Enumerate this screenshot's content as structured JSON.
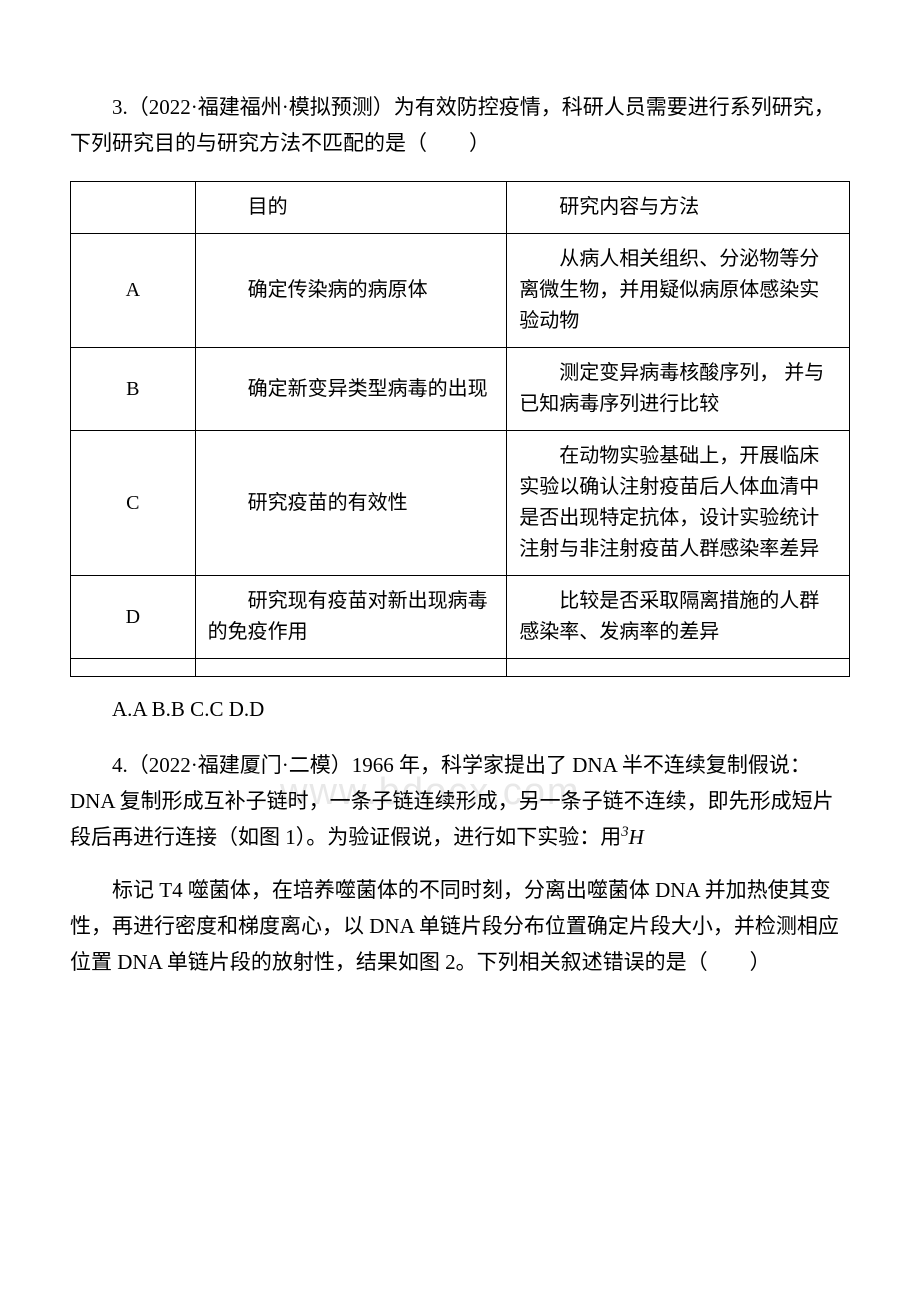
{
  "question3": {
    "prompt": "3.（2022·福建福州·模拟预测）为有效防控疫情，科研人员需要进行系列研究，下列研究目的与研究方法不匹配的是（　　）",
    "headers": {
      "label": "",
      "purpose": "目的",
      "method": "研究内容与方法"
    },
    "rows": [
      {
        "label": "A",
        "purpose": "确定传染病的病原体",
        "method": "从病人相关组织、分泌物等分离微生物，并用疑似病原体感染实验动物"
      },
      {
        "label": "B",
        "purpose": "确定新变异类型病毒的出现",
        "method": "测定变异病毒核酸序列， 并与已知病毒序列进行比较"
      },
      {
        "label": "C",
        "purpose": "研究疫苗的有效性",
        "method": "在动物实验基础上，开展临床实验以确认注射疫苗后人体血清中是否出现特定抗体，设计实验统计注射与非注射疫苗人群感染率差异"
      },
      {
        "label": "D",
        "purpose": "研究现有疫苗对新出现病毒的免疫作用",
        "method": "比较是否采取隔离措施的人群感染率、发病率的差异"
      }
    ],
    "options": "A.A B.B C.C D.D"
  },
  "question4": {
    "para1_before_sup": "4.（2022·福建厦门·二模）1966 年，科学家提出了 DNA 半不连续复制假说：DNA 复制形成互补子链时，一条子链连续形成，另一条子链不连续，即先形成短片段后再进行连接（如图 1）。为验证假说，进行如下实验：用",
    "para1_sup_num": "3",
    "para1_sup_letter": "H",
    "para2": "标记 T4 噬菌体，在培养噬菌体的不同时刻，分离出噬菌体 DNA 并加热使其变性，再进行密度和梯度离心，以 DNA 单链片段分布位置确定片段大小，并检测相应位置 DNA 单链片段的放射性，结果如图 2。下列相关叙述错误的是（　　）"
  },
  "watermark_text": "www.bdocx.com",
  "colors": {
    "text": "#000000",
    "background": "#ffffff",
    "border": "#000000",
    "watermark": "#e8e8e8"
  }
}
